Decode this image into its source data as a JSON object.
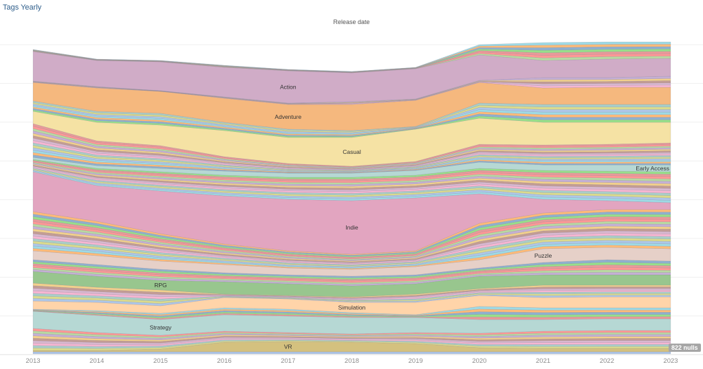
{
  "header": {
    "title": "Tags Yearly",
    "axis_title": "Release date"
  },
  "nulls_badge": "822 nulls",
  "chart_data": {
    "type": "area",
    "stacked": true,
    "title": "Tags Yearly",
    "xlabel": "Release date",
    "ylabel": "",
    "grid": true,
    "x": [
      2013,
      2014,
      2015,
      2016,
      2017,
      2018,
      2019,
      2020,
      2021,
      2022,
      2023
    ],
    "x_tick_labels": [
      "2013",
      "2014",
      "2015",
      "2016",
      "2017",
      "2018",
      "2019",
      "2020",
      "2021",
      "2022",
      "2023"
    ],
    "series": [
      {
        "values": [
          3,
          3,
          3,
          3,
          3,
          3,
          3,
          3,
          3,
          3,
          3
        ]
      },
      {
        "label": "VR",
        "color": "#d4c17f",
        "label_year": 2017,
        "values": [
          2,
          2,
          4,
          14,
          15,
          14,
          12,
          6,
          5,
          5,
          5
        ]
      },
      {
        "values": [
          32,
          26,
          20,
          16,
          13,
          12,
          16,
          21,
          25,
          26,
          26
        ]
      },
      {
        "label": "Strategy",
        "color": "#b6d8d4",
        "label_year": 2015,
        "values": [
          25,
          25,
          23,
          24,
          24,
          24,
          22,
          20,
          17,
          17,
          17
        ]
      },
      {
        "values": [
          3,
          7,
          9,
          10,
          10,
          7,
          4,
          19,
          17,
          16,
          16
        ]
      },
      {
        "label": "Simulation",
        "color": "#ffd4a9",
        "label_year": 2018,
        "values": [
          12,
          12,
          11,
          15,
          15,
          15,
          18,
          16,
          15,
          16,
          16
        ]
      },
      {
        "values": [
          26,
          22,
          23,
          5,
          5,
          8,
          12,
          10,
          18,
          17,
          17
        ]
      },
      {
        "label": "RPG",
        "color": "#98c68e",
        "label_year": 2015,
        "values": [
          17,
          16,
          14,
          18,
          17,
          16,
          15,
          18,
          15,
          15,
          15
        ]
      },
      {
        "values": [
          17,
          17,
          16,
          13,
          13,
          14,
          13,
          12,
          18,
          22,
          20
        ]
      },
      {
        "label": "Puzzle",
        "color": "#e6d0c8",
        "label_year": 2021,
        "values": [
          13,
          13,
          12,
          12,
          10,
          10,
          12,
          12,
          20,
          18,
          18
        ]
      },
      {
        "values": [
          57,
          50,
          40,
          30,
          25,
          22,
          23,
          53,
          52,
          55,
          57
        ]
      },
      {
        "label": "Indie",
        "color": "#e2a5c0",
        "label_year": 2018,
        "values": [
          58,
          52,
          62,
          70,
          75,
          78,
          77,
          43,
          20,
          13,
          10
        ]
      },
      {
        "values": [
          18,
          25,
          28,
          30,
          32,
          34,
          33,
          37,
          42,
          43,
          45
        ]
      },
      {
        "label": "Early Access",
        "color": "#b6d8d4",
        "label_year": 2023,
        "values": [
          3,
          4,
          5,
          6,
          6,
          6,
          7,
          9,
          8,
          9,
          10
        ]
      },
      {
        "values": [
          49,
          36,
          33,
          21,
          14,
          10,
          13,
          26,
          29,
          30,
          32
        ]
      },
      {
        "label": "Casual",
        "color": "#f5e2a4",
        "label_year": 2018,
        "values": [
          18,
          27,
          30,
          38,
          38,
          42,
          47,
          38,
          33,
          32,
          30
        ]
      },
      {
        "values": [
          15,
          16,
          17,
          12,
          12,
          10,
          4,
          22,
          26,
          26,
          26
        ]
      },
      {
        "label": "Adventure",
        "color": "#f5b87e",
        "label_year": 2017,
        "values": [
          27,
          34,
          32,
          35,
          36,
          38,
          38,
          30,
          24,
          25,
          25
        ]
      },
      {
        "values": [
          2,
          2,
          1,
          2,
          2,
          4,
          2,
          3,
          15,
          14,
          16
        ]
      },
      {
        "label": "Action",
        "color": "#d0acc7",
        "label_year": 2017,
        "values": [
          43,
          38,
          42,
          43,
          47,
          42,
          44,
          37,
          25,
          27,
          26
        ]
      },
      {
        "values": [
          3,
          2,
          2,
          3,
          2,
          2,
          2,
          15,
          26,
          25,
          24
        ]
      }
    ],
    "stripe_palette": [
      "#aec7e8",
      "#ffbb78",
      "#98df8a",
      "#ff9896",
      "#c5b0d5",
      "#c49c94",
      "#f7b6d2",
      "#dbdb8d",
      "#9edae5",
      "#8fb0cf",
      "#e89a9a",
      "#b9d9a1",
      "#f2d08c",
      "#d9b8d0",
      "#a9cfc9"
    ]
  }
}
